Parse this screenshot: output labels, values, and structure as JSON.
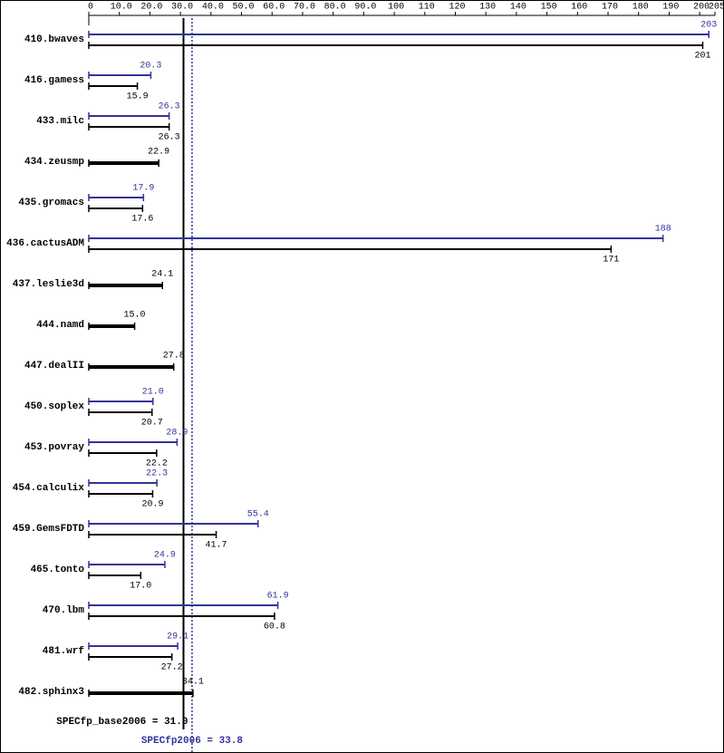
{
  "chart_data": {
    "type": "bar",
    "orientation": "horizontal",
    "categories": [
      "410.bwaves",
      "416.gamess",
      "433.milc",
      "434.zeusmp",
      "435.gromacs",
      "436.cactusADM",
      "437.leslie3d",
      "444.namd",
      "447.dealII",
      "450.soplex",
      "453.povray",
      "454.calculix",
      "459.GemsFDTD",
      "465.tonto",
      "470.lbm",
      "481.wrf",
      "482.sphinx3"
    ],
    "series": [
      {
        "name": "base",
        "color": "#000000",
        "values": [
          201,
          15.9,
          26.3,
          22.9,
          17.6,
          171,
          24.1,
          15.0,
          27.8,
          20.7,
          22.2,
          20.9,
          41.7,
          17.0,
          60.8,
          27.2,
          34.1
        ],
        "value_labels": [
          "201",
          "15.9",
          "26.3",
          "22.9",
          "17.6",
          "171",
          "24.1",
          "15.0",
          "27.8",
          "20.7",
          "22.2",
          "20.9",
          "41.7",
          "17.0",
          "60.8",
          "27.2",
          "34.1"
        ]
      },
      {
        "name": "peak",
        "color": "#333399",
        "values": [
          203,
          20.3,
          26.3,
          null,
          17.9,
          188,
          null,
          null,
          null,
          21.0,
          28.9,
          22.3,
          55.4,
          24.9,
          61.9,
          29.1,
          null
        ],
        "value_labels": [
          "203",
          "20.3",
          "26.3",
          null,
          "17.9",
          "188",
          null,
          null,
          null,
          "21.0",
          "28.9",
          "22.3",
          "55.4",
          "24.9",
          "61.9",
          "29.1",
          null
        ]
      }
    ],
    "xlim": [
      0,
      205
    ],
    "xticks": [
      0,
      {
        "value": 10,
        "label": "10.0"
      },
      {
        "value": 20,
        "label": "20.0"
      },
      {
        "value": 30,
        "label": "30.0"
      },
      {
        "value": 40,
        "label": "40.0"
      },
      {
        "value": 50,
        "label": "50.0"
      },
      {
        "value": 60,
        "label": "60.0"
      },
      {
        "value": 70,
        "label": "70.0"
      },
      {
        "value": 80,
        "label": "80.0"
      },
      {
        "value": 90,
        "label": "90.0"
      },
      100,
      110,
      120,
      130,
      140,
      150,
      160,
      170,
      180,
      190,
      200,
      205
    ],
    "base_metric": {
      "label": "SPECfp_base2006 = 31.0",
      "value": 31.0
    },
    "peak_metric": {
      "label": "SPECfp2006 = 33.8",
      "value": 33.8
    }
  }
}
